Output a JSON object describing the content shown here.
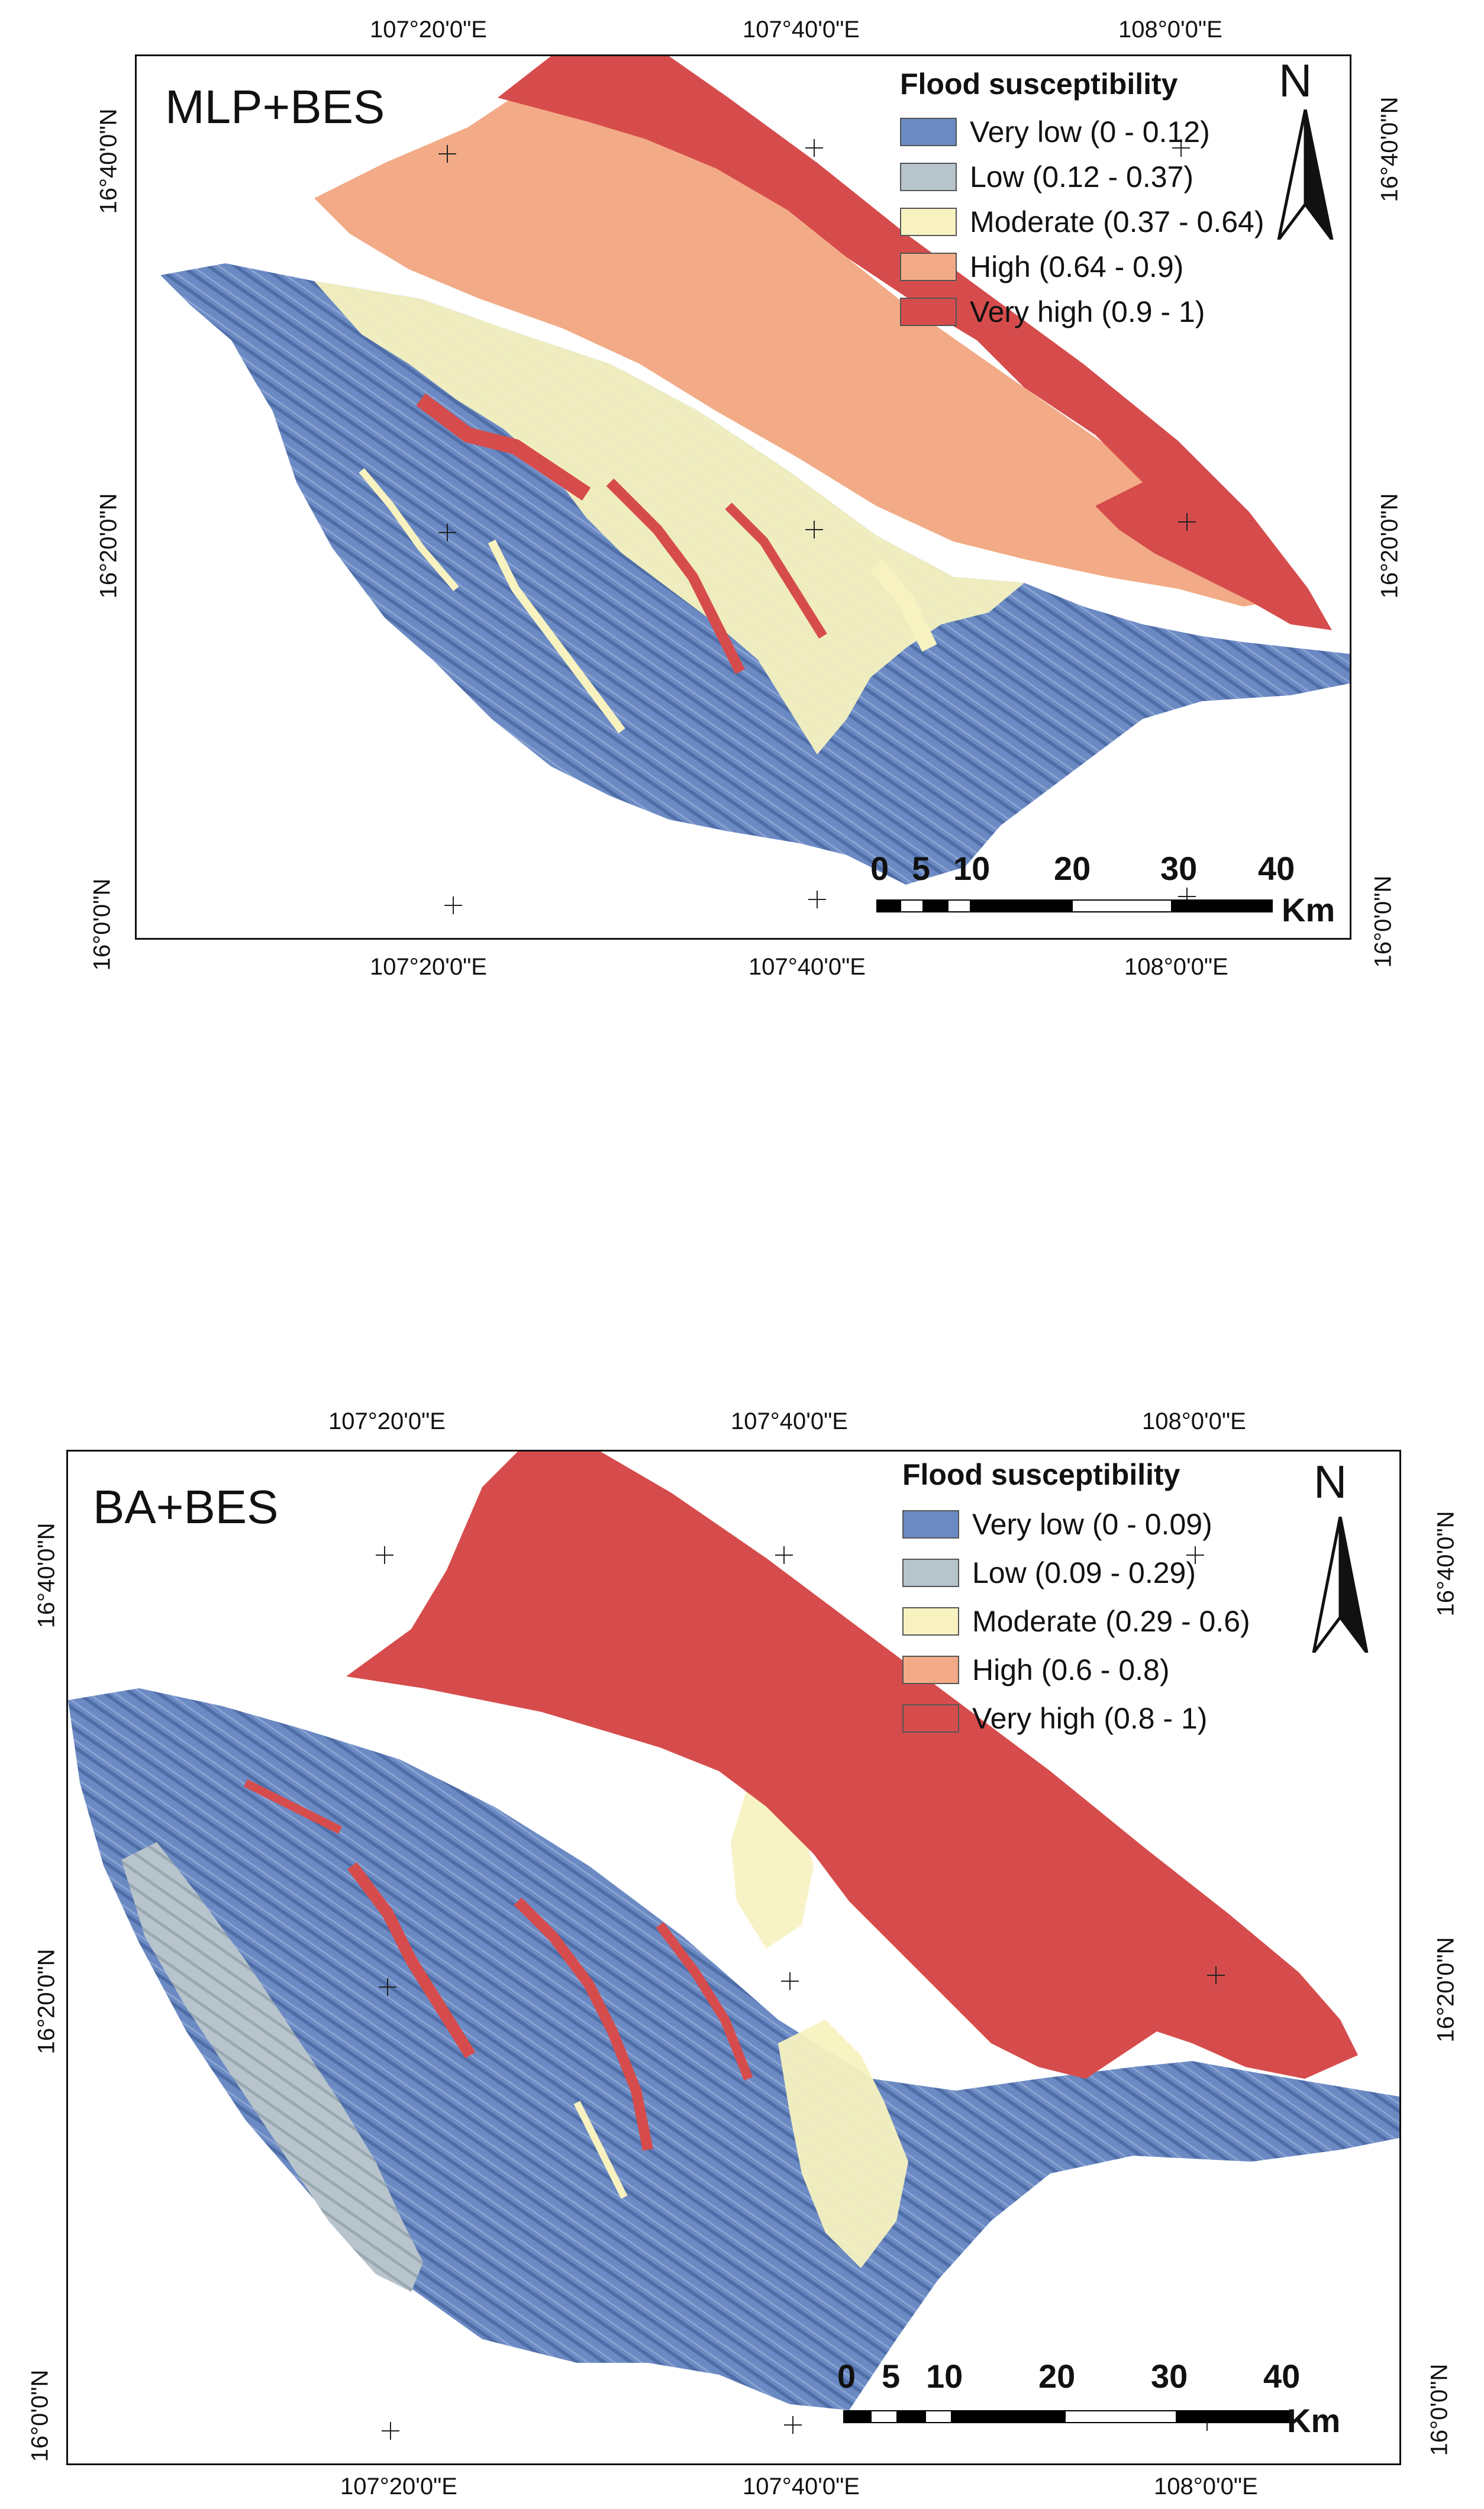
{
  "colors": {
    "very_low": "#6b8ac4",
    "low": "#b8c4cc",
    "moderate": "#f7f2c0",
    "high": "#f2ab86",
    "very_high": "#d64c4c",
    "shade_dark": "#3f5f98"
  },
  "panels": [
    {
      "title": "MLP+BES",
      "legend_title": "Flood susceptibility",
      "legend_items": [
        {
          "label": "Very low (0 - 0.12)",
          "color": "#6b8ac4"
        },
        {
          "label": "Low (0.12 - 0.37)",
          "color": "#b8c4cc"
        },
        {
          "label": "Moderate (0.37 - 0.64)",
          "color": "#f7f2c0"
        },
        {
          "label": "High (0.64 - 0.9)",
          "color": "#f2ab86"
        },
        {
          "label": "Very high (0.9 - 1)",
          "color": "#d64c4c"
        }
      ],
      "north": "N",
      "scale_labels": [
        "0",
        "5",
        "10",
        "20",
        "30",
        "40"
      ],
      "scale_unit": "Km",
      "lon_labels": [
        "107°20'0\"E",
        "107°40'0\"E",
        "108°0'0\"E"
      ],
      "lat_labels": [
        "16°40'0\"N",
        "16°20'0\"N",
        "16°0'0\"N"
      ]
    },
    {
      "title": "BA+BES",
      "legend_title": "Flood susceptibility",
      "legend_items": [
        {
          "label": "Very low (0 - 0.09)",
          "color": "#6b8ac4"
        },
        {
          "label": "Low (0.09 - 0.29)",
          "color": "#b8c4cc"
        },
        {
          "label": "Moderate (0.29 - 0.6)",
          "color": "#f7f2c0"
        },
        {
          "label": "High (0.6 - 0.8)",
          "color": "#f2ab86"
        },
        {
          "label": "Very high (0.8 - 1)",
          "color": "#d64c4c"
        }
      ],
      "north": "N",
      "scale_labels": [
        "0",
        "5",
        "10",
        "20",
        "30",
        "40"
      ],
      "scale_unit": "Km",
      "lon_labels": [
        "107°20'0\"E",
        "107°40'0\"E",
        "108°0'0\"E"
      ],
      "lat_labels": [
        "16°40'0\"N",
        "16°20'0\"N",
        "16°0'0\"N"
      ]
    }
  ]
}
